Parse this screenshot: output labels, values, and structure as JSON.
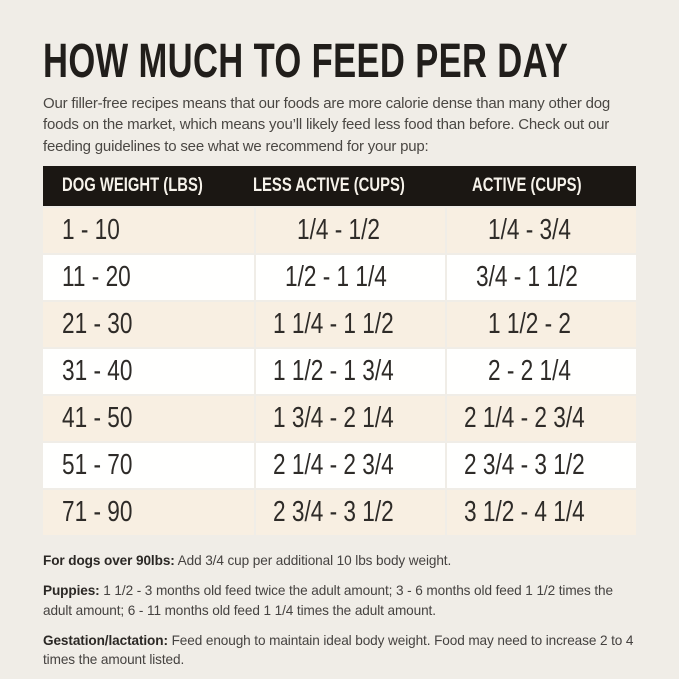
{
  "title": "HOW MUCH TO FEED PER DAY",
  "intro": "Our filler-free recipes means that our foods are more calorie dense than many other dog foods on the market, which means you’ll likely feed less food than before. Check out our feeding guidelines to see what we recommend for your pup:",
  "table": {
    "headers": [
      "DOG WEIGHT (LBS)",
      "LESS ACTIVE (CUPS)",
      "ACTIVE (CUPS)"
    ],
    "rows": [
      [
        "1 - 10",
        "1/4 - 1/2",
        "1/4 - 3/4"
      ],
      [
        "11 - 20",
        "1/2 - 1 1/4",
        "3/4 - 1 1/2"
      ],
      [
        "21 - 30",
        "1 1/4 - 1 1/2",
        "1 1/2 - 2"
      ],
      [
        "31 - 40",
        "1 1/2 - 1 3/4",
        "2 - 2 1/4"
      ],
      [
        "41 - 50",
        "1 3/4 - 2 1/4",
        "2 1/4 - 2 3/4"
      ],
      [
        "51 - 70",
        "2 1/4 - 2 3/4",
        "2 3/4 - 3 1/2"
      ],
      [
        "71 - 90",
        "2 3/4 - 3 1/2",
        "3 1/2 - 4 1/4"
      ]
    ]
  },
  "notes": [
    {
      "label": "For dogs over 90lbs:",
      "text": "Add 3/4 cup per additional 10 lbs body weight."
    },
    {
      "label": "Puppies:",
      "text": "1 1/2 - 3 months old feed twice the adult amount; 3 - 6 months old feed 1 1/2 times the adult amount; 6 - 11 months old feed 1 1/4 times the adult amount."
    },
    {
      "label": "Gestation/lactation:",
      "text": "Feed enough to maintain ideal body weight. Food may need to increase 2 to 4 times the amount listed."
    }
  ],
  "colors": {
    "page_background": "#f0ede7",
    "header_background": "#1b1713",
    "header_text": "#f6f2ea",
    "row_beige": "#f8efe2",
    "row_white": "#fffffe",
    "title_text": "#211e1b",
    "body_text": "#4a4743"
  }
}
